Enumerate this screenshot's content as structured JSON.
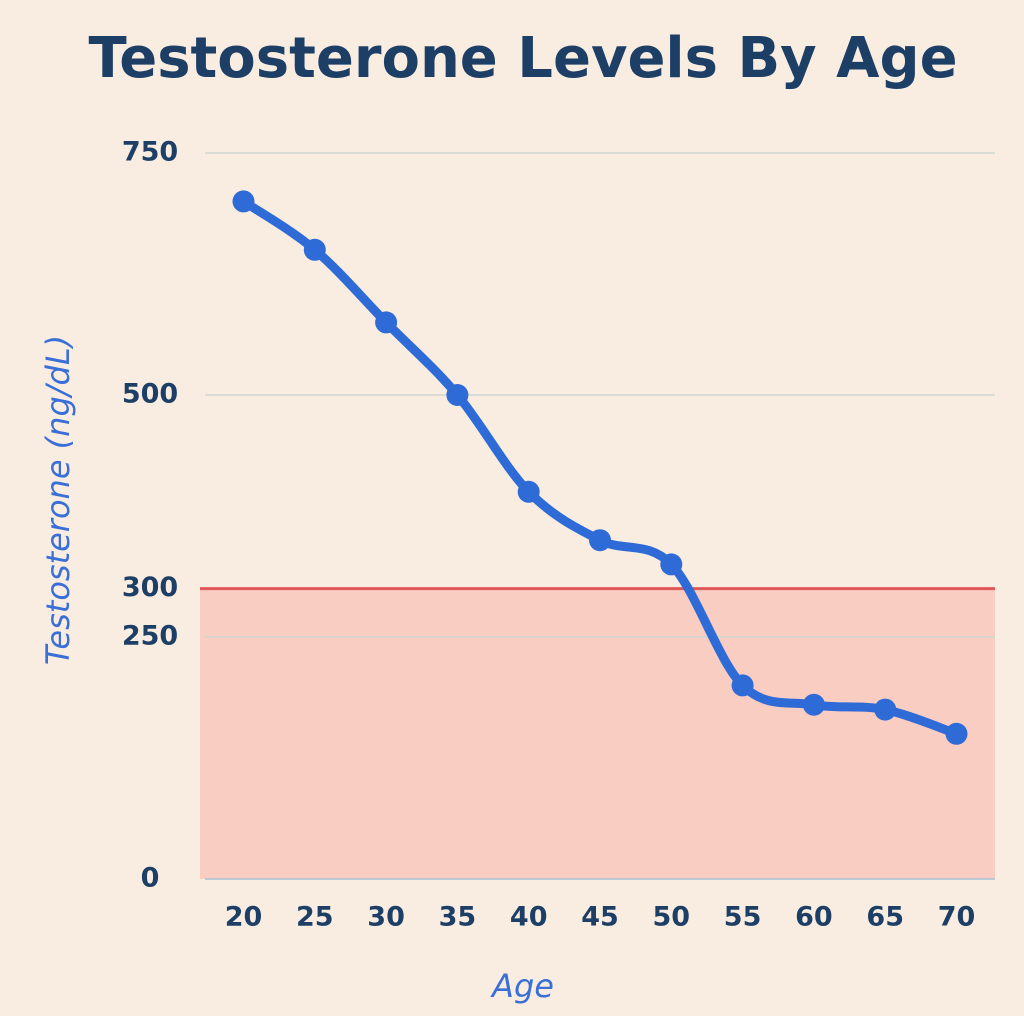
{
  "chart_data": {
    "type": "line",
    "title": "Testosterone Levels By Age",
    "x_label": "Age",
    "y_label": "Testosterone (ng/dL)",
    "x": [
      20,
      25,
      30,
      35,
      40,
      45,
      50,
      55,
      60,
      65,
      70
    ],
    "xlim": [
      17.3,
      72.7
    ],
    "xticks": [
      20,
      25,
      30,
      35,
      40,
      45,
      50,
      55,
      60,
      65,
      70
    ],
    "ylim": [
      0,
      750
    ],
    "yticks": [
      0,
      250,
      300,
      500,
      750
    ],
    "grid": true,
    "smooth": true,
    "threshold": {
      "value": 300,
      "color": "#e0575a",
      "fill": "#f9cdc2"
    },
    "series": [
      {
        "color": "#2f6bd6",
        "values": [
          700,
          650,
          575,
          500,
          400,
          350,
          325,
          200,
          180,
          175,
          150
        ]
      }
    ]
  }
}
